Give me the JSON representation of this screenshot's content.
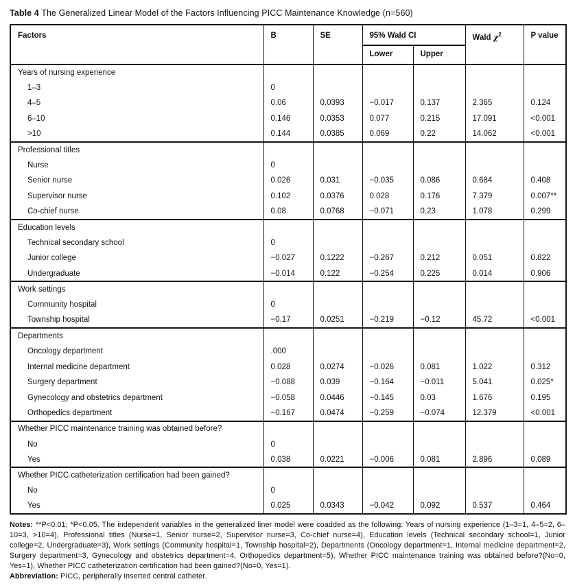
{
  "title": {
    "label": "Table 4",
    "text": " The Generalized Linear Model of the Factors Influencing PICC Maintenance Knowledge (n=560)"
  },
  "table": {
    "headers": {
      "factors": "Factors",
      "b": "B",
      "se": "SE",
      "wald_ci": "95% Wald CI",
      "lower": "Lower",
      "upper": "Upper",
      "wald_word": "Wald ",
      "chi": "χ",
      "chi_sup": "2",
      "p_value": "P value"
    },
    "sections": [
      {
        "category": "Years of nursing experience",
        "rows": [
          {
            "label": "1–3",
            "b": "0",
            "se": "",
            "lower": "",
            "upper": "",
            "wald": "",
            "p": ""
          },
          {
            "label": "4–5",
            "b": "0.06",
            "se": "0.0393",
            "lower": "−0.017",
            "upper": "0.137",
            "wald": "2.365",
            "p": "0.124"
          },
          {
            "label": "6–10",
            "b": "0.146",
            "se": "0.0353",
            "lower": "0.077",
            "upper": "0.215",
            "wald": "17.091",
            "p": "<0.001"
          },
          {
            "label": ">10",
            "b": "0.144",
            "se": "0.0385",
            "lower": "0.069",
            "upper": "0.22",
            "wald": "14.062",
            "p": "<0.001"
          }
        ]
      },
      {
        "category": "Professional titles",
        "rows": [
          {
            "label": "Nurse",
            "b": "0",
            "se": "",
            "lower": "",
            "upper": "",
            "wald": "",
            "p": ""
          },
          {
            "label": "Senior nurse",
            "b": "0.026",
            "se": "0.031",
            "lower": "−0.035",
            "upper": "0.086",
            "wald": "0.684",
            "p": "0.408"
          },
          {
            "label": "Supervisor nurse",
            "b": "0.102",
            "se": "0.0376",
            "lower": "0.028",
            "upper": "0.176",
            "wald": "7.379",
            "p": "0.007**"
          },
          {
            "label": "Co-chief nurse",
            "b": "0.08",
            "se": "0.0768",
            "lower": "−0.071",
            "upper": "0.23",
            "wald": "1.078",
            "p": "0.299"
          }
        ]
      },
      {
        "category": "Education levels",
        "rows": [
          {
            "label": "Technical secondary school",
            "b": "0",
            "se": "",
            "lower": "",
            "upper": "",
            "wald": "",
            "p": ""
          },
          {
            "label": "Junior college",
            "b": "−0.027",
            "se": "0.1222",
            "lower": "−0.267",
            "upper": "0.212",
            "wald": "0.051",
            "p": "0.822"
          },
          {
            "label": "Undergraduate",
            "b": "−0.014",
            "se": "0.122",
            "lower": "−0.254",
            "upper": "0.225",
            "wald": "0.014",
            "p": "0.906"
          }
        ]
      },
      {
        "category": "Work settings",
        "rows": [
          {
            "label": "Community hospital",
            "b": "0",
            "se": "",
            "lower": "",
            "upper": "",
            "wald": "",
            "p": ""
          },
          {
            "label": "Township hospital",
            "b": "−0.17",
            "se": "0.0251",
            "lower": "−0.219",
            "upper": "−0.12",
            "wald": "45.72",
            "p": "<0.001"
          }
        ]
      },
      {
        "category": "Departments",
        "rows": [
          {
            "label": "Oncology department",
            "b": ".000",
            "se": "",
            "lower": "",
            "upper": "",
            "wald": "",
            "p": ""
          },
          {
            "label": "Internal medicine department",
            "b": "0.028",
            "se": "0.0274",
            "lower": "−0.026",
            "upper": "0.081",
            "wald": "1.022",
            "p": "0.312"
          },
          {
            "label": "Surgery department",
            "b": "−0.088",
            "se": "0.039",
            "lower": "−0.164",
            "upper": "−0.011",
            "wald": "5.041",
            "p": "0.025*"
          },
          {
            "label": "Gynecology and obstetrics department",
            "b": "−0.058",
            "se": "0.0446",
            "lower": "−0.145",
            "upper": "0.03",
            "wald": "1.676",
            "p": "0.195"
          },
          {
            "label": "Orthopedics department",
            "b": "−0.167",
            "se": "0.0474",
            "lower": "−0.259",
            "upper": "−0.074",
            "wald": "12.379",
            "p": "<0.001"
          }
        ]
      },
      {
        "category": "Whether PICC maintenance training was obtained before?",
        "rows": [
          {
            "label": "No",
            "b": "0",
            "se": "",
            "lower": "",
            "upper": "",
            "wald": "",
            "p": ""
          },
          {
            "label": "Yes",
            "b": "0.038",
            "se": "0.0221",
            "lower": "−0.006",
            "upper": "0.081",
            "wald": "2.896",
            "p": "0.089"
          }
        ]
      },
      {
        "category": "Whether PICC catheterization certification had been gained?",
        "rows": [
          {
            "label": "No",
            "b": "0",
            "se": "",
            "lower": "",
            "upper": "",
            "wald": "",
            "p": ""
          },
          {
            "label": "Yes",
            "b": "0.025",
            "se": "0.0343",
            "lower": "−0.042",
            "upper": "0.092",
            "wald": "0.537",
            "p": "0.464"
          }
        ]
      }
    ]
  },
  "notes": {
    "label": "Notes:",
    "text": " **P<0.01; *P<0.05. The independent variables in the generalized liner model were coadded as the following: Years of nursing experience (1–3=1, 4–5=2, 6–10=3, >10=4), Professional titles (Nurse=1, Senior nurse=2, Supervisor nurse=3, Co-chief nurse=4), Education levels (Technical secondary school=1, Junior college=2, Undergraduate=3), Work settings (Community hospital=1, Township hospital=2), Departments (Oncology department=1, Internal medicine department=2, Surgery department=3, Gynecology and obstetrics department=4, Orthopedics department=5), Whether PICC maintenance training was obtained before?(No=0, Yes=1), Whether PICC catheterization certification had been gained?(No=0, Yes=1)."
  },
  "abbreviation": {
    "label": "Abbreviation:",
    "text": " PICC, peripherally inserted central catheter."
  }
}
